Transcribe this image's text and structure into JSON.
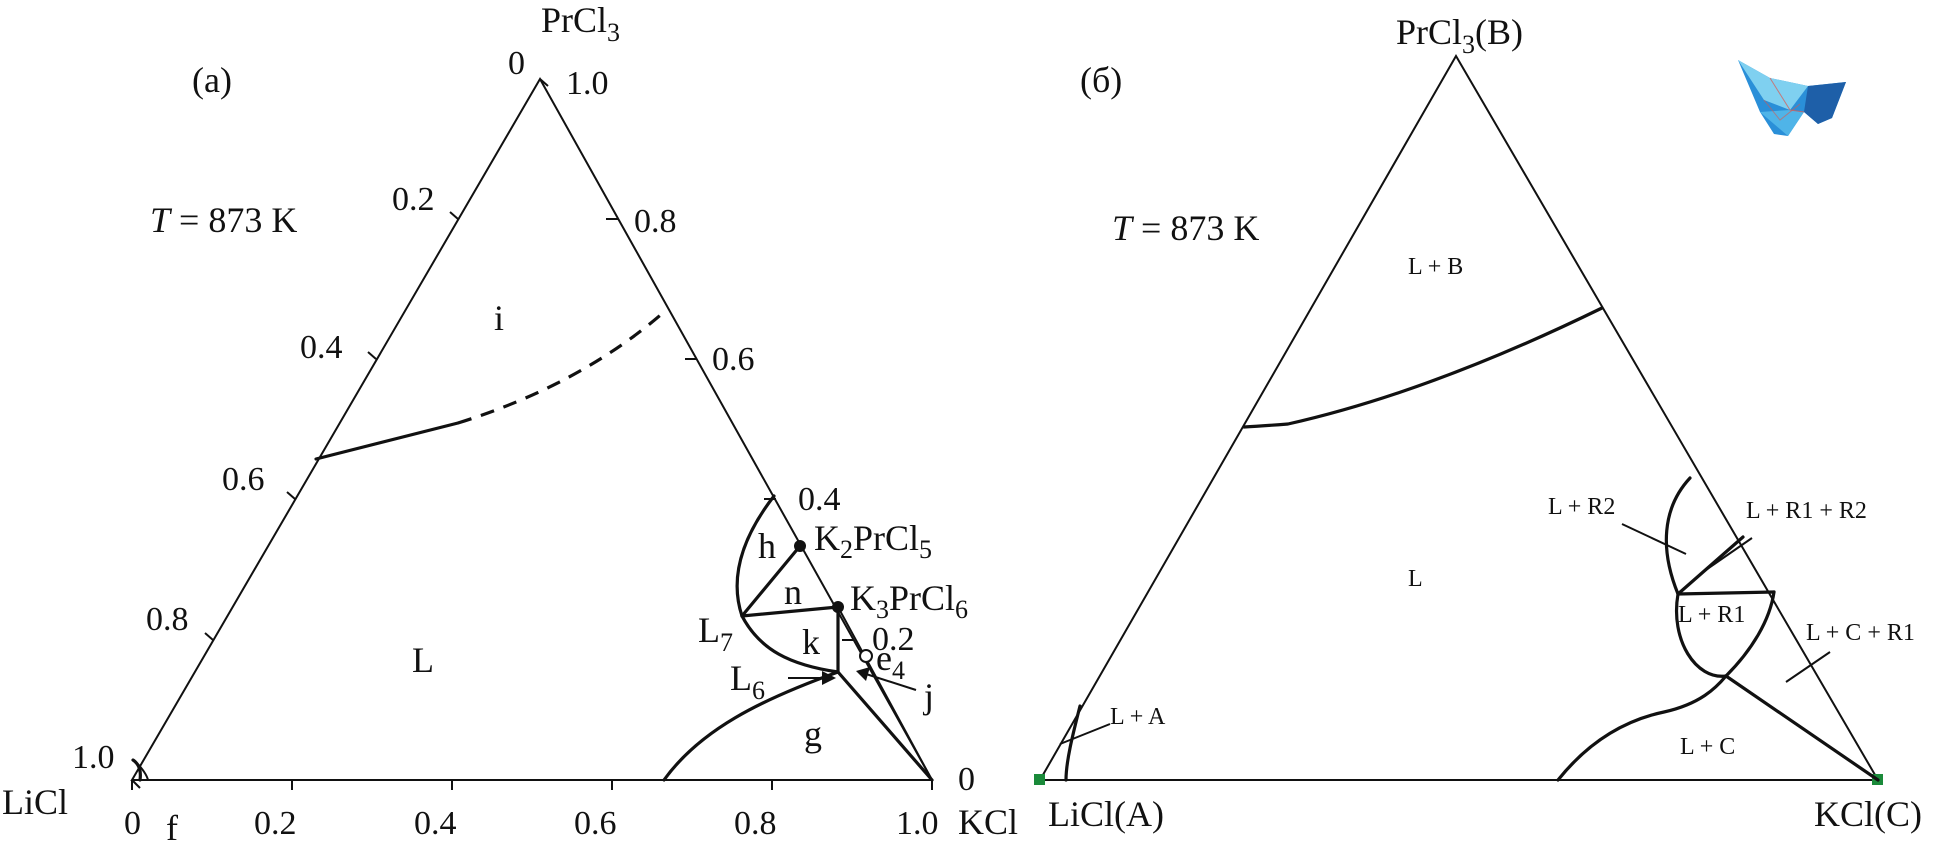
{
  "panel_a": {
    "label": "(a)",
    "temperature": {
      "italic": "T",
      "rest": " = 873 K"
    },
    "vertices": {
      "top": {
        "main": "PrCl",
        "sub": "3"
      },
      "left": "LiCl",
      "right": "KCl"
    },
    "left_edge_ticks": [
      "0",
      "0.2",
      "0.4",
      "0.6",
      "0.8",
      "1.0"
    ],
    "right_edge_ticks": [
      "1.0",
      "0.8",
      "0.6",
      "0.4",
      "0.2",
      "0"
    ],
    "bottom_ticks": [
      "0",
      "0.2",
      "0.4",
      "0.6",
      "0.8",
      "1.0"
    ],
    "regions": [
      "i",
      "L",
      "h",
      "n",
      "k",
      "g"
    ],
    "compounds": [
      {
        "main": "K",
        "sub1": "2",
        "mid": "PrCl",
        "sub2": "5"
      },
      {
        "main": "K",
        "sub1": "3",
        "mid": "PrCl",
        "sub2": "6"
      }
    ],
    "points": {
      "L7": {
        "main": "L",
        "sub": "7"
      },
      "L6": {
        "main": "L",
        "sub": "6"
      },
      "e4": {
        "main": "e",
        "sub": "4"
      },
      "j": "j",
      "f": "f"
    }
  },
  "panel_b": {
    "label": "(б)",
    "temperature": {
      "italic": "T",
      "rest": " = 873 K"
    },
    "vertices": {
      "top": {
        "main": "PrCl",
        "sub": "3",
        "suffix": "(B)"
      },
      "left": "LiCl(A)",
      "right": "KCl(C)"
    },
    "regions": [
      "L + B",
      "L",
      "L + R2",
      "L + R1 + R2",
      "L + R1",
      "L + C + R1",
      "L + C",
      "L + A"
    ],
    "vertex_marker_color": "#1a8a3a",
    "logo_colors": [
      "#2a8fd8",
      "#7fd0f0",
      "#1e5fa8"
    ]
  }
}
